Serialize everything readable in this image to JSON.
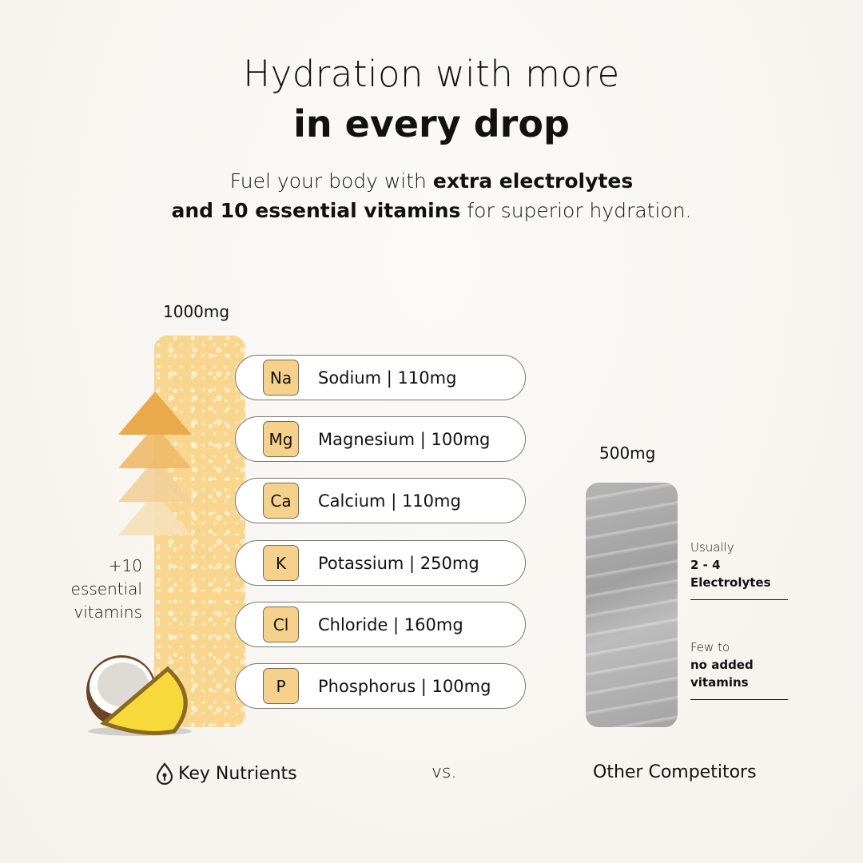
{
  "header": {
    "title_line1": "Hydration with more",
    "title_line2": "in every drop",
    "subtitle_part1": "Fuel your body with ",
    "subtitle_bold1": "extra electrolytes",
    "subtitle_bold2": "and 10 essential vitamins",
    "subtitle_part2": " for superior hydration."
  },
  "key_nutrients": {
    "total": "1000mg",
    "vitamins_label": [
      "+10",
      "essential",
      "vitamins"
    ],
    "brand": "Key Nutrients",
    "color": "#f9d68d",
    "electrolytes": [
      {
        "symbol": "Na",
        "label": "Sodium | 110mg"
      },
      {
        "symbol": "Mg",
        "label": "Magnesium | 100mg"
      },
      {
        "symbol": "Ca",
        "label": "Calcium | 110mg"
      },
      {
        "symbol": "K",
        "label": "Potassium | 250mg"
      },
      {
        "symbol": "Cl",
        "label": "Chloride | 160mg"
      },
      {
        "symbol": "P",
        "label": "Phosphorus | 100mg"
      }
    ]
  },
  "vs": "vs.",
  "competitors": {
    "total": "500mg",
    "label": "Other Competitors",
    "note1": {
      "light": "Usually",
      "bold1": "2 - 4",
      "bold2": "Electrolytes"
    },
    "note2": {
      "light": "Few to",
      "bold1": "no added",
      "bold2": "vitamins"
    }
  }
}
